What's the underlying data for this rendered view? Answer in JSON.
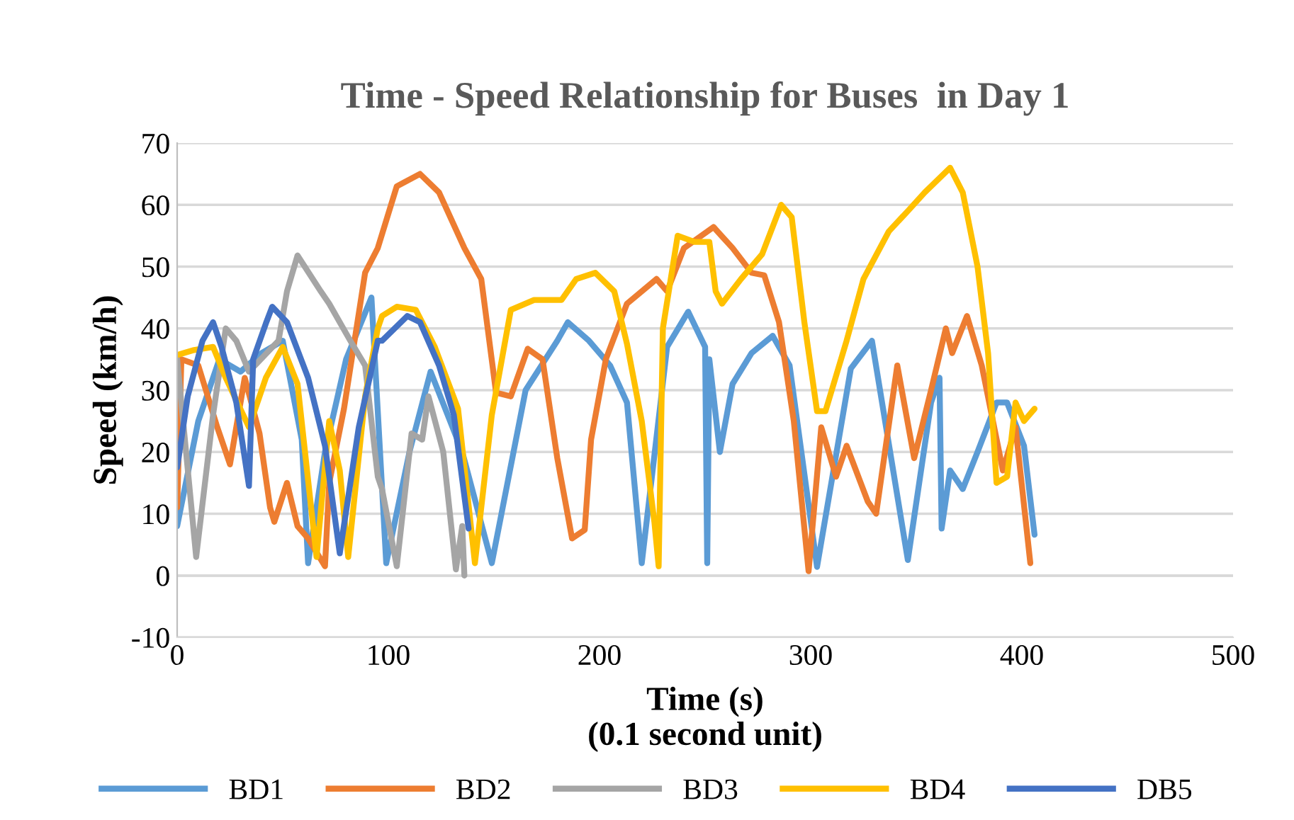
{
  "chart_data": {
    "type": "line",
    "title": "Time - Speed Relationship for Buses  in Day 1",
    "xlabel": "Time (s)\n(0.1 second unit)",
    "ylabel": "Speed (km/h)",
    "xlim": [
      0,
      500
    ],
    "xticks": [
      0,
      100,
      200,
      300,
      400,
      500
    ],
    "ylim": [
      -10,
      70
    ],
    "yticks": [
      -10,
      0,
      10,
      20,
      30,
      40,
      50,
      60,
      70
    ],
    "grid": "y",
    "legend": "bottom",
    "marker": "none",
    "line_style": "solid",
    "series": [
      {
        "name": "BD1",
        "color": "#5b9bd5",
        "x": [
          0,
          10,
          20,
          30,
          40,
          50,
          59,
          62,
          70,
          80,
          92,
          99,
          110,
          120,
          135,
          149,
          165,
          180,
          185,
          195,
          205,
          213,
          220,
          232,
          242,
          250,
          251,
          252,
          257,
          263,
          272,
          282,
          290,
          303,
          319,
          329,
          346,
          357,
          361,
          362,
          366,
          372,
          379,
          388,
          393,
          401,
          406
        ],
        "values": [
          8,
          25,
          35,
          33,
          36,
          38,
          22,
          2,
          20,
          35,
          45,
          2,
          20,
          33,
          20,
          2,
          30,
          38,
          41,
          38,
          34,
          28,
          2,
          37,
          42.7,
          37,
          2,
          35,
          20,
          31,
          36,
          38.8,
          34,
          1.4,
          33.5,
          38,
          2.5,
          28,
          32,
          7.6,
          17,
          14,
          20,
          28,
          28,
          21,
          6.6
        ]
      },
      {
        "name": "BD2",
        "color": "#ed7d31",
        "x": [
          0,
          2,
          10,
          19,
          25,
          32,
          39,
          44,
          46,
          52,
          57,
          62,
          70,
          72,
          79,
          89,
          95,
          104,
          115,
          124,
          136,
          144,
          151,
          158,
          166,
          173,
          180,
          187,
          193,
          196,
          203,
          213,
          227,
          232,
          240,
          254,
          263,
          272,
          278,
          285,
          292,
          299,
          305,
          312,
          317,
          327,
          331,
          341,
          349,
          357,
          364,
          367,
          374,
          381,
          391,
          397,
          404
        ],
        "values": [
          11,
          35,
          34,
          24,
          18,
          32,
          23,
          11,
          8.7,
          15,
          8,
          6,
          1.5,
          15,
          27,
          49,
          53,
          63,
          65,
          62,
          53,
          48,
          29.6,
          29,
          36.7,
          35,
          19,
          6,
          7.4,
          22,
          35,
          44,
          48,
          46,
          53,
          56.4,
          53,
          49,
          48.6,
          41,
          25,
          0.7,
          24,
          16,
          21,
          12,
          10,
          34,
          19,
          30,
          40,
          36,
          42,
          34,
          17,
          24,
          2
        ]
      },
      {
        "name": "BD3",
        "color": "#a5a5a5",
        "x": [
          0,
          9,
          17,
          23,
          28,
          34,
          48,
          52,
          57,
          68,
          72,
          82,
          89,
          95,
          97,
          104,
          111,
          116,
          119,
          126,
          132,
          135,
          136
        ],
        "values": [
          35,
          3,
          26,
          40,
          38,
          33,
          38,
          46,
          51.8,
          46,
          44,
          38,
          34,
          16,
          14,
          1.5,
          23,
          22,
          29,
          20,
          1,
          8,
          0
        ]
      },
      {
        "name": "BD4",
        "color": "#ffc000",
        "x": [
          0,
          8,
          17,
          23,
          34,
          42,
          50,
          57,
          66,
          72,
          77,
          81,
          89,
          95,
          97,
          104,
          113,
          122,
          133,
          141,
          149,
          158,
          169,
          182,
          189,
          198,
          207,
          213,
          220,
          226,
          228,
          230,
          237,
          245,
          252,
          255,
          258,
          267,
          277,
          286,
          291,
          297,
          303,
          307,
          317,
          325,
          337,
          346,
          354,
          366,
          372,
          379,
          384,
          388,
          393,
          397,
          401,
          406
        ],
        "values": [
          35.7,
          36.5,
          37,
          32,
          24,
          32,
          37,
          31,
          3,
          25,
          17,
          3,
          29,
          40,
          42,
          43.5,
          43,
          37,
          27,
          2,
          26,
          43,
          44.6,
          44.6,
          48,
          49,
          46,
          37.5,
          25,
          8.6,
          1.5,
          40,
          55,
          54,
          54,
          46,
          44,
          48,
          52,
          60,
          58,
          41,
          26.6,
          26.6,
          38,
          48,
          55.7,
          59,
          62,
          66,
          62,
          50,
          36,
          15,
          16,
          28,
          25,
          27
        ]
      },
      {
        "name": "DB5",
        "color": "#4472c4",
        "x": [
          0,
          5,
          12,
          17,
          21,
          28,
          34,
          36,
          42,
          45,
          52,
          62,
          70,
          77,
          86,
          95,
          97,
          109,
          115,
          124,
          131,
          138
        ],
        "values": [
          17.5,
          29,
          38,
          41,
          37,
          28,
          14.5,
          35,
          40.8,
          43.5,
          41,
          32,
          21,
          3.6,
          24,
          38,
          38,
          42,
          41,
          34,
          26,
          7.6
        ]
      }
    ]
  }
}
